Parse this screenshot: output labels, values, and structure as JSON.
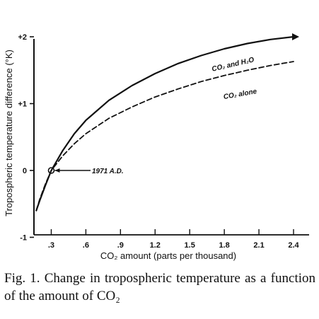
{
  "chart_data": {
    "type": "line",
    "ylabel": "Tropospheric temperature difference (°K)",
    "xlabel": "CO₂ amount (parts per thousand)",
    "xlim": [
      0.15,
      2.4
    ],
    "ylim": [
      -1,
      2.2
    ],
    "x_ticks": [
      {
        "value": 0.3,
        "label": ".3"
      },
      {
        "value": 0.6,
        "label": ".6"
      },
      {
        "value": 0.9,
        "label": ".9"
      },
      {
        "value": 1.2,
        "label": "1.2"
      },
      {
        "value": 1.5,
        "label": "1.5"
      },
      {
        "value": 1.8,
        "label": "1.8"
      },
      {
        "value": 2.1,
        "label": "2.1"
      },
      {
        "value": 2.4,
        "label": "2.4"
      }
    ],
    "y_ticks": [
      {
        "value": 2,
        "label": "+2"
      },
      {
        "value": 1,
        "label": "+1"
      },
      {
        "value": 0,
        "label": "0"
      },
      {
        "value": -1,
        "label": "-1"
      }
    ],
    "series": [
      {
        "name": "CO₂ and H₂O",
        "style": "solid",
        "x": [
          0.17,
          0.2,
          0.25,
          0.3,
          0.4,
          0.5,
          0.6,
          0.8,
          1.0,
          1.2,
          1.4,
          1.6,
          1.8,
          2.0,
          2.2,
          2.4
        ],
        "y": [
          -0.6,
          -0.45,
          -0.22,
          0.0,
          0.3,
          0.55,
          0.75,
          1.05,
          1.27,
          1.45,
          1.6,
          1.72,
          1.82,
          1.9,
          1.96,
          2.0
        ]
      },
      {
        "name": "CO₂ alone",
        "style": "dashed",
        "x": [
          0.17,
          0.2,
          0.25,
          0.3,
          0.4,
          0.5,
          0.6,
          0.8,
          1.0,
          1.2,
          1.4,
          1.6,
          1.8,
          2.0,
          2.2,
          2.4
        ],
        "y": [
          -0.6,
          -0.43,
          -0.2,
          0.0,
          0.22,
          0.4,
          0.55,
          0.78,
          0.95,
          1.1,
          1.22,
          1.33,
          1.42,
          1.5,
          1.57,
          1.63
        ]
      }
    ],
    "annotations": [
      {
        "text": "CO₂ and H₂O"
      },
      {
        "text": "CO₂ alone"
      },
      {
        "text": "1971 A.D."
      }
    ],
    "marker": {
      "x": 0.3,
      "y": 0.0,
      "label": "1971 A.D."
    },
    "grid": false
  },
  "caption": "Fig. 1. Change in tropospheric temperature as a function of the amount of CO₂"
}
